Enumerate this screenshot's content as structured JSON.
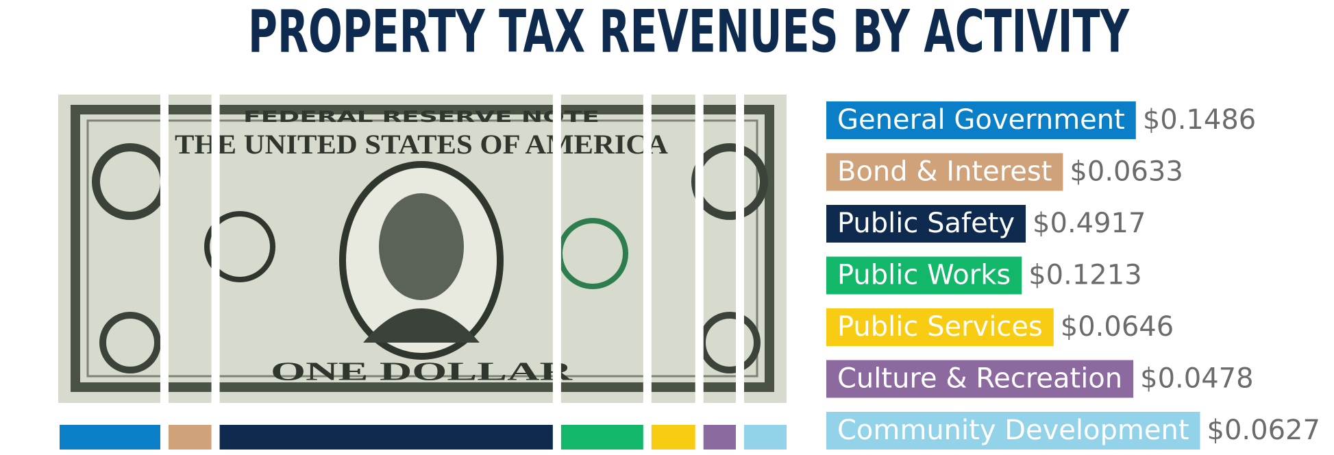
{
  "chart_data": {
    "type": "bar",
    "title": "PROPERTY TAX REVENUES BY ACTIVITY",
    "categories": [
      "General Government",
      "Bond & Interest",
      "Public Safety",
      "Public Works",
      "Public Services",
      "Culture & Recreation",
      "Community Development"
    ],
    "values": [
      0.1486,
      0.0633,
      0.4917,
      0.1213,
      0.0646,
      0.0478,
      0.0627
    ],
    "value_labels": [
      "$0.1486",
      "$0.0633",
      "$0.4917",
      "$0.1213",
      "$0.0646",
      "$0.0478",
      "$0.0627"
    ],
    "colors": [
      "#0a7fc7",
      "#cfa27a",
      "#0e2a4f",
      "#12b76a",
      "#f7cc13",
      "#8c6aa0",
      "#93d3ea"
    ],
    "bill": {
      "header": "FEDERAL RESERVE NOTE",
      "country": "THE UNITED STATES OF AMERICA",
      "denomination": "ONE DOLLAR"
    }
  }
}
